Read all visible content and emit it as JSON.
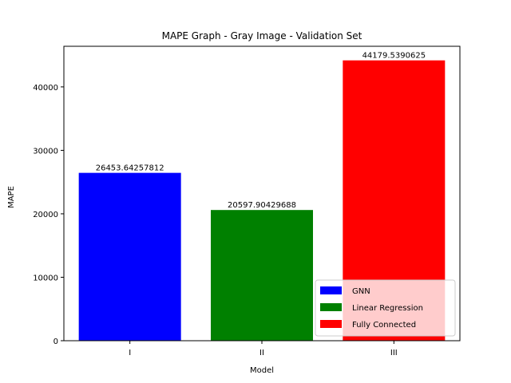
{
  "chart_data": {
    "type": "bar",
    "title": "MAPE Graph - Gray Image - Validation Set",
    "xlabel": "Model",
    "ylabel": "MAPE",
    "categories": [
      "I",
      "II",
      "III"
    ],
    "values": [
      26453.64257812,
      20597.90429688,
      44179.5390625
    ],
    "value_labels": [
      "26453.64257812",
      "20597.90429688",
      "44179.5390625"
    ],
    "colors": [
      "#0000ff",
      "#008000",
      "#ff0000"
    ],
    "ylim": [
      0,
      46400
    ],
    "yticks": [
      0,
      10000,
      20000,
      30000,
      40000
    ],
    "ytick_labels": [
      "0",
      "10000",
      "20000",
      "30000",
      "40000"
    ],
    "grid": false,
    "legend": {
      "placement": "lower-right",
      "entries": [
        {
          "label": "GNN",
          "color": "#0000ff"
        },
        {
          "label": "Linear Regression",
          "color": "#008000"
        },
        {
          "label": "Fully Connected",
          "color": "#ff0000"
        }
      ]
    }
  }
}
